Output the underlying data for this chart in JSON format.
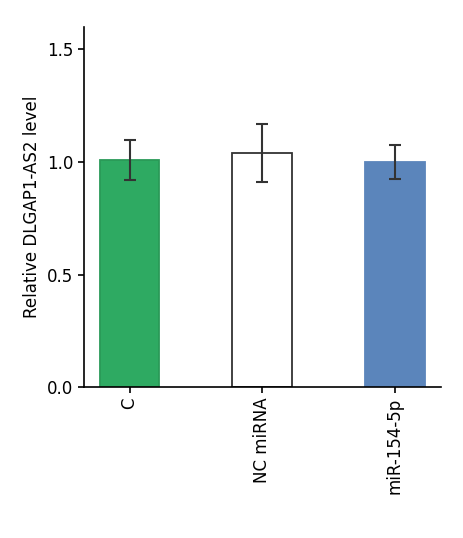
{
  "categories": [
    "C",
    "NC miRNA",
    "miR-154-5p"
  ],
  "values": [
    1.01,
    1.04,
    1.0
  ],
  "errors": [
    0.09,
    0.13,
    0.075
  ],
  "bar_colors": [
    "#2eaa62",
    "#ffffff",
    "#5b85bb"
  ],
  "bar_edgecolors": [
    "#2a9a58",
    "#333333",
    "#5b85bb"
  ],
  "ylabel": "Relative DLGAP1-AS2 level",
  "ylim": [
    0.0,
    1.6
  ],
  "yticks": [
    0.0,
    0.5,
    1.0,
    1.5
  ],
  "ytick_labels": [
    "0.0",
    "0.5",
    "1.0",
    "1.5"
  ],
  "background_color": "#ffffff",
  "bar_width": 0.45,
  "capsize": 4,
  "error_color": "#333333",
  "tick_fontsize": 12,
  "label_fontsize": 12
}
